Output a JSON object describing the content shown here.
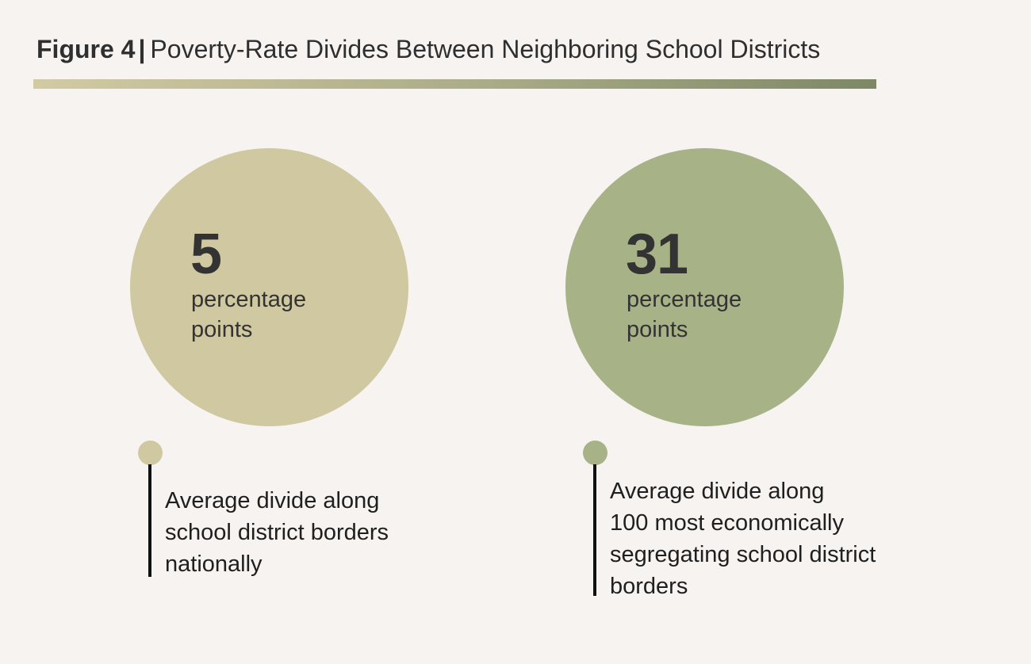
{
  "title": {
    "figure_label": "Figure 4",
    "separator": "|",
    "text": "Poverty-Rate Divides Between Neighboring School Districts"
  },
  "colors": {
    "background": "#f7f3f0",
    "rule_start": "#d2caa3",
    "rule_end": "#7e8865",
    "national": "#d0c8a0",
    "segregating": "#a7b287",
    "text": "#333333",
    "stem": "#111111"
  },
  "chart_data": {
    "type": "bar",
    "title": "Poverty-Rate Divides Between Neighboring School Districts",
    "categories": [
      "Average divide along school district borders nationally",
      "Average divide along 100 most economically segregating school district borders"
    ],
    "values": [
      5,
      31
    ],
    "unit": "percentage points",
    "items": [
      {
        "value": "5",
        "unit_line1": "percentage",
        "unit_line2": "points",
        "description_lines": [
          "Average divide along",
          "school district borders",
          "nationally"
        ],
        "color": "#d0c8a0"
      },
      {
        "value": "31",
        "unit_line1": "percentage",
        "unit_line2": "points",
        "description_lines": [
          "Average divide along",
          "100 most economically",
          "segregating school district",
          "borders"
        ],
        "color": "#a7b287"
      }
    ]
  }
}
